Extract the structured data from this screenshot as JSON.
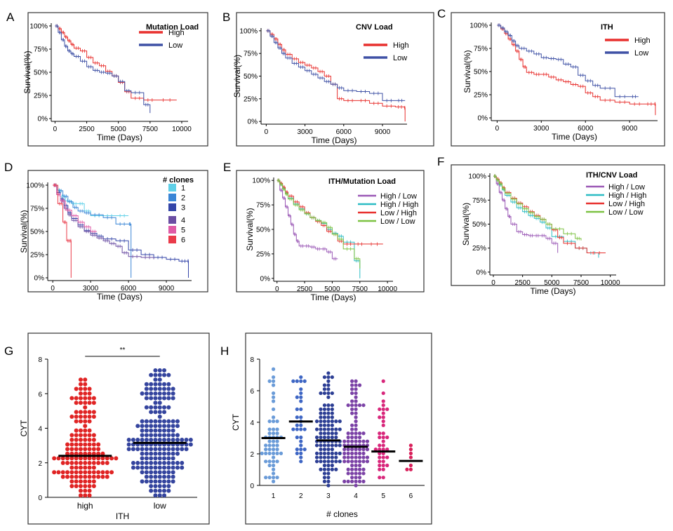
{
  "colors": {
    "high": "#e8312f",
    "low": "#3f51a5",
    "clone1": "#5fd0e8",
    "clone2": "#3a86d6",
    "clone3": "#3445a8",
    "clone4": "#6b4ea3",
    "clone5": "#e05ba6",
    "clone6": "#ea3b4a",
    "hl": "#9b59b6",
    "hh": "#2bbcc4",
    "lh": "#e8312f",
    "ll": "#7dc242",
    "dotG_high": "#e02424",
    "dotG_low": "#34449e",
    "dotH": [
      "#6a9bd8",
      "#3e66c4",
      "#2c3e94",
      "#7b42a6",
      "#d8277b",
      "#d8205a"
    ]
  },
  "chart_data": [
    {
      "panel": "A",
      "type": "line",
      "subtype": "kaplan-meier",
      "legend_title": "Mutation Load",
      "legend_position": "top-right",
      "xlabel": "Time (Days)",
      "ylabel": "Survival(%)",
      "xticks": [
        "0",
        "2500",
        "5000",
        "7500",
        "10000"
      ],
      "yticks": [
        "0%",
        "25%",
        "50%",
        "75%",
        "100%"
      ],
      "xlim": [
        -300,
        10500
      ],
      "ylim": [
        -3,
        103
      ],
      "series": [
        {
          "name": "High",
          "color": "high",
          "x": [
            0,
            250,
            500,
            750,
            1000,
            1250,
            1500,
            2000,
            2500,
            3000,
            3500,
            4000,
            4500,
            5000,
            5500,
            6000,
            7000,
            8000,
            9600
          ],
          "y": [
            100,
            97,
            93,
            88,
            84,
            80,
            76,
            73,
            66,
            60,
            57,
            51,
            46,
            39,
            29,
            22,
            20,
            20,
            20
          ]
        },
        {
          "name": "Low",
          "color": "low",
          "x": [
            0,
            250,
            500,
            750,
            1000,
            1250,
            1500,
            2000,
            2500,
            3000,
            3500,
            4000,
            4500,
            5000,
            5500,
            6000,
            7000,
            7500
          ],
          "y": [
            100,
            93,
            85,
            78,
            73,
            70,
            67,
            62,
            56,
            52,
            50,
            49,
            46,
            40,
            30,
            28,
            15,
            6
          ]
        }
      ]
    },
    {
      "panel": "B",
      "type": "line",
      "subtype": "kaplan-meier",
      "legend_title": "CNV Load",
      "legend_position": "top-right",
      "xlabel": "Time (Days)",
      "ylabel": "Survival(%)",
      "xticks": [
        "0",
        "3000",
        "6000",
        "9000"
      ],
      "yticks": [
        "0%",
        "25%",
        "50%",
        "75%",
        "100%"
      ],
      "xlim": [
        -400,
        10900
      ],
      "ylim": [
        -3,
        103
      ],
      "series": [
        {
          "name": "High",
          "color": "high",
          "x": [
            0,
            300,
            600,
            900,
            1200,
            1500,
            2000,
            2500,
            3000,
            3500,
            4000,
            4500,
            5000,
            5500,
            6000,
            7000,
            8000,
            9000,
            10000,
            10700,
            10750
          ],
          "y": [
            100,
            96,
            91,
            85,
            79,
            74,
            69,
            65,
            62,
            59,
            55,
            50,
            41,
            25,
            23,
            23,
            20,
            17,
            16,
            15,
            0
          ]
        },
        {
          "name": "Low",
          "color": "low",
          "x": [
            0,
            300,
            600,
            900,
            1200,
            1500,
            2000,
            2500,
            3000,
            3500,
            4000,
            4500,
            5000,
            5500,
            6000,
            7000,
            8000,
            9000,
            10000,
            10750
          ],
          "y": [
            100,
            94,
            87,
            81,
            75,
            70,
            64,
            60,
            56,
            52,
            48,
            44,
            41,
            37,
            34,
            33,
            31,
            23,
            23,
            23
          ]
        }
      ]
    },
    {
      "panel": "C",
      "type": "line",
      "subtype": "kaplan-meier",
      "legend_title": "ITH",
      "legend_position": "top-right",
      "xlabel": "Time (Days)",
      "ylabel": "Survival(%)",
      "xticks": [
        "0",
        "3000",
        "6000",
        "9000"
      ],
      "yticks": [
        "0%",
        "25%",
        "50%",
        "75%",
        "100%"
      ],
      "xlim": [
        -400,
        10900
      ],
      "ylim": [
        -3,
        103
      ],
      "series": [
        {
          "name": "High",
          "color": "high",
          "x": [
            0,
            250,
            500,
            750,
            1000,
            1250,
            1500,
            1750,
            2000,
            2500,
            3000,
            3500,
            4000,
            4500,
            5000,
            5500,
            6000,
            6500,
            7000,
            8000,
            9000,
            10000,
            10700,
            10750
          ],
          "y": [
            100,
            96,
            91,
            85,
            79,
            72,
            63,
            55,
            49,
            47,
            47,
            44,
            41,
            39,
            36,
            34,
            27,
            23,
            19,
            17,
            15,
            15,
            15,
            3
          ]
        },
        {
          "name": "Low",
          "color": "low",
          "x": [
            0,
            250,
            500,
            750,
            1000,
            1250,
            1500,
            2000,
            2500,
            3000,
            3500,
            4000,
            4500,
            5000,
            5500,
            6000,
            6500,
            7000,
            8000,
            9000,
            9600
          ],
          "y": [
            100,
            97,
            93,
            89,
            83,
            78,
            75,
            72,
            69,
            65,
            64,
            63,
            58,
            55,
            46,
            40,
            35,
            32,
            23,
            23,
            23
          ]
        }
      ]
    },
    {
      "panel": "D",
      "type": "line",
      "subtype": "kaplan-meier",
      "legend_title": "# clones",
      "legend_position": "top-right",
      "xlabel": "Time (Days)",
      "ylabel": "Survival(%)",
      "xticks": [
        "0",
        "3000",
        "6000",
        "9000"
      ],
      "yticks": [
        "0%",
        "25%",
        "50%",
        "75%",
        "100%"
      ],
      "xlim": [
        -400,
        11000
      ],
      "ylim": [
        -3,
        103
      ],
      "series": [
        {
          "name": "1",
          "color": "clone1",
          "x": [
            0,
            300,
            600,
            1000,
            1500,
            2000,
            2500,
            3000,
            4000,
            5000,
            6000
          ],
          "y": [
            100,
            95,
            88,
            83,
            80,
            80,
            72,
            67,
            67,
            67,
            67
          ]
        },
        {
          "name": "2",
          "color": "clone2",
          "x": [
            0,
            400,
            800,
            1200,
            1600,
            2000,
            2500,
            3000,
            4000,
            5000,
            6000,
            6200
          ],
          "y": [
            100,
            94,
            88,
            82,
            76,
            72,
            70,
            68,
            65,
            58,
            58,
            0
          ]
        },
        {
          "name": "3",
          "color": "clone3",
          "x": [
            0,
            300,
            600,
            900,
            1200,
            1500,
            2000,
            2500,
            3000,
            3500,
            4000,
            5000,
            6000,
            7000,
            8000,
            9000,
            10000,
            10700,
            10750
          ],
          "y": [
            100,
            92,
            85,
            78,
            70,
            64,
            57,
            51,
            48,
            45,
            42,
            40,
            30,
            25,
            22,
            20,
            18,
            18,
            0
          ]
        },
        {
          "name": "4",
          "color": "clone4",
          "x": [
            0,
            300,
            600,
            900,
            1200,
            1500,
            2000,
            2500,
            3000,
            3500,
            4000,
            4500,
            5000,
            5500,
            6000,
            7000,
            8000
          ],
          "y": [
            100,
            90,
            83,
            75,
            68,
            62,
            55,
            50,
            46,
            43,
            40,
            37,
            34,
            27,
            23,
            22,
            20
          ]
        },
        {
          "name": "5",
          "color": "clone5",
          "x": [
            0,
            300,
            600,
            1000,
            1500,
            2000,
            2500,
            3000,
            3500
          ],
          "y": [
            100,
            90,
            83,
            73,
            67,
            60,
            55,
            50,
            50
          ]
        },
        {
          "name": "6",
          "color": "clone6",
          "x": [
            0,
            400,
            800,
            1100,
            1400,
            1450
          ],
          "y": [
            100,
            80,
            60,
            40,
            40,
            0
          ]
        }
      ]
    },
    {
      "panel": "E",
      "type": "line",
      "subtype": "kaplan-meier",
      "legend_title": "ITH/Mutation Load",
      "legend_position": "top-right",
      "xlabel": "Time (Days)",
      "ylabel": "Survival(%)",
      "xticks": [
        "0",
        "2500",
        "5000",
        "7500",
        "10000"
      ],
      "yticks": [
        "0%",
        "25%",
        "50%",
        "75%",
        "100%"
      ],
      "xlim": [
        -300,
        10500
      ],
      "ylim": [
        -3,
        103
      ],
      "series": [
        {
          "name": "High / Low",
          "color": "hl",
          "x": [
            0,
            250,
            500,
            750,
            1000,
            1250,
            1500,
            1750,
            2000,
            2500,
            3000,
            3500,
            4000,
            4500,
            5000,
            5500
          ],
          "y": [
            100,
            90,
            82,
            73,
            64,
            55,
            45,
            38,
            33,
            33,
            32,
            30,
            30,
            27,
            20,
            20
          ]
        },
        {
          "name": "High / High",
          "color": "hh",
          "x": [
            0,
            250,
            500,
            750,
            1000,
            1500,
            2000,
            2500,
            3000,
            3500,
            4000,
            4500,
            5000,
            5500,
            6000,
            7000,
            7500
          ],
          "y": [
            100,
            96,
            92,
            87,
            82,
            76,
            71,
            66,
            62,
            59,
            56,
            50,
            46,
            43,
            37,
            18,
            0
          ]
        },
        {
          "name": "Low / High",
          "color": "lh",
          "x": [
            0,
            250,
            500,
            750,
            1000,
            1500,
            2000,
            2500,
            3000,
            3500,
            4000,
            4500,
            5000,
            5500,
            6000,
            7000,
            8000,
            9600
          ],
          "y": [
            100,
            97,
            93,
            88,
            84,
            78,
            73,
            67,
            62,
            58,
            54,
            48,
            45,
            38,
            35,
            35,
            35,
            35
          ]
        },
        {
          "name": "Low / Low",
          "color": "ll",
          "x": [
            0,
            250,
            500,
            750,
            1000,
            1500,
            2000,
            2500,
            3000,
            3500,
            4000,
            4500,
            5000,
            5500,
            6000,
            7000,
            7500
          ],
          "y": [
            100,
            96,
            91,
            86,
            81,
            75,
            70,
            66,
            62,
            59,
            57,
            52,
            45,
            40,
            30,
            20,
            10
          ]
        }
      ]
    },
    {
      "panel": "F",
      "type": "line",
      "subtype": "kaplan-meier",
      "legend_title": "ITH/CNV Load",
      "legend_position": "top-right",
      "xlabel": "Time (Days)",
      "ylabel": "Survival(%)",
      "xticks": [
        "0",
        "2500",
        "5000",
        "7500",
        "10000"
      ],
      "yticks": [
        "0%",
        "25%",
        "50%",
        "75%",
        "100%"
      ],
      "xlim": [
        -300,
        10500
      ],
      "ylim": [
        -3,
        103
      ],
      "series": [
        {
          "name": "High / Low",
          "color": "hl",
          "x": [
            0,
            250,
            500,
            750,
            1000,
            1250,
            1500,
            2000,
            2500,
            3000,
            3500,
            4000,
            4500,
            5000,
            5500
          ],
          "y": [
            100,
            92,
            83,
            75,
            66,
            58,
            50,
            42,
            39,
            38,
            38,
            38,
            35,
            30,
            20
          ]
        },
        {
          "name": "High / High",
          "color": "hh",
          "x": [
            0,
            250,
            500,
            750,
            1000,
            1500,
            2000,
            2500,
            3000,
            3500,
            4000,
            4500,
            5000,
            6000,
            7000,
            8000,
            9000
          ],
          "y": [
            100,
            96,
            91,
            86,
            80,
            73,
            67,
            63,
            59,
            56,
            52,
            46,
            37,
            32,
            25,
            20,
            15
          ]
        },
        {
          "name": "Low / High",
          "color": "lh",
          "x": [
            0,
            250,
            500,
            750,
            1000,
            1500,
            2000,
            2500,
            3000,
            3500,
            4000,
            4500,
            5000,
            5500,
            6000,
            7000,
            8000,
            9600
          ],
          "y": [
            100,
            97,
            93,
            88,
            83,
            77,
            72,
            68,
            63,
            59,
            55,
            50,
            44,
            36,
            30,
            25,
            20,
            20
          ]
        },
        {
          "name": "Low / Low",
          "color": "ll",
          "x": [
            0,
            250,
            500,
            750,
            1000,
            1500,
            2000,
            2500,
            3000,
            3500,
            4000,
            4500,
            5000,
            6000,
            7000,
            7500
          ],
          "y": [
            100,
            96,
            92,
            87,
            82,
            76,
            71,
            66,
            62,
            58,
            55,
            50,
            45,
            40,
            35,
            33
          ]
        }
      ]
    },
    {
      "panel": "G",
      "type": "scatter",
      "subtype": "dot-plot",
      "xlabel": "ITH",
      "ylabel": "CYT",
      "categories": [
        "high",
        "low"
      ],
      "yticks": [
        "0",
        "2",
        "4",
        "6",
        "8"
      ],
      "ylim": [
        0,
        8
      ],
      "medians": [
        2.4,
        3.15
      ],
      "significance": "**",
      "groups": [
        {
          "name": "high",
          "color": "dotG_high",
          "n": 155,
          "min": 0.1,
          "max": 6.7,
          "median": 2.4
        },
        {
          "name": "low",
          "color": "dotG_low",
          "n": 210,
          "min": 0.1,
          "max": 7.4,
          "median": 3.15
        }
      ]
    },
    {
      "panel": "H",
      "type": "scatter",
      "subtype": "dot-plot",
      "xlabel": "# clones",
      "ylabel": "CYT",
      "categories": [
        "1",
        "2",
        "3",
        "4",
        "5",
        "6"
      ],
      "yticks": [
        "0",
        "2",
        "4",
        "6",
        "8"
      ],
      "ylim": [
        0,
        8
      ],
      "medians": [
        3.0,
        4.05,
        2.85,
        2.45,
        2.15,
        1.55
      ],
      "groups": [
        {
          "name": "1",
          "n": 55,
          "min": 0.2,
          "max": 7.4,
          "median": 3.0
        },
        {
          "name": "2",
          "n": 32,
          "min": 1.6,
          "max": 6.9,
          "median": 4.05
        },
        {
          "name": "3",
          "n": 115,
          "min": 0.1,
          "max": 7.2,
          "median": 2.85
        },
        {
          "name": "4",
          "n": 110,
          "min": 0.1,
          "max": 6.6,
          "median": 2.45
        },
        {
          "name": "5",
          "n": 38,
          "min": 0.6,
          "max": 6.5,
          "median": 2.15
        },
        {
          "name": "6",
          "n": 7,
          "min": 0.9,
          "max": 2.6,
          "median": 1.55
        }
      ]
    }
  ]
}
